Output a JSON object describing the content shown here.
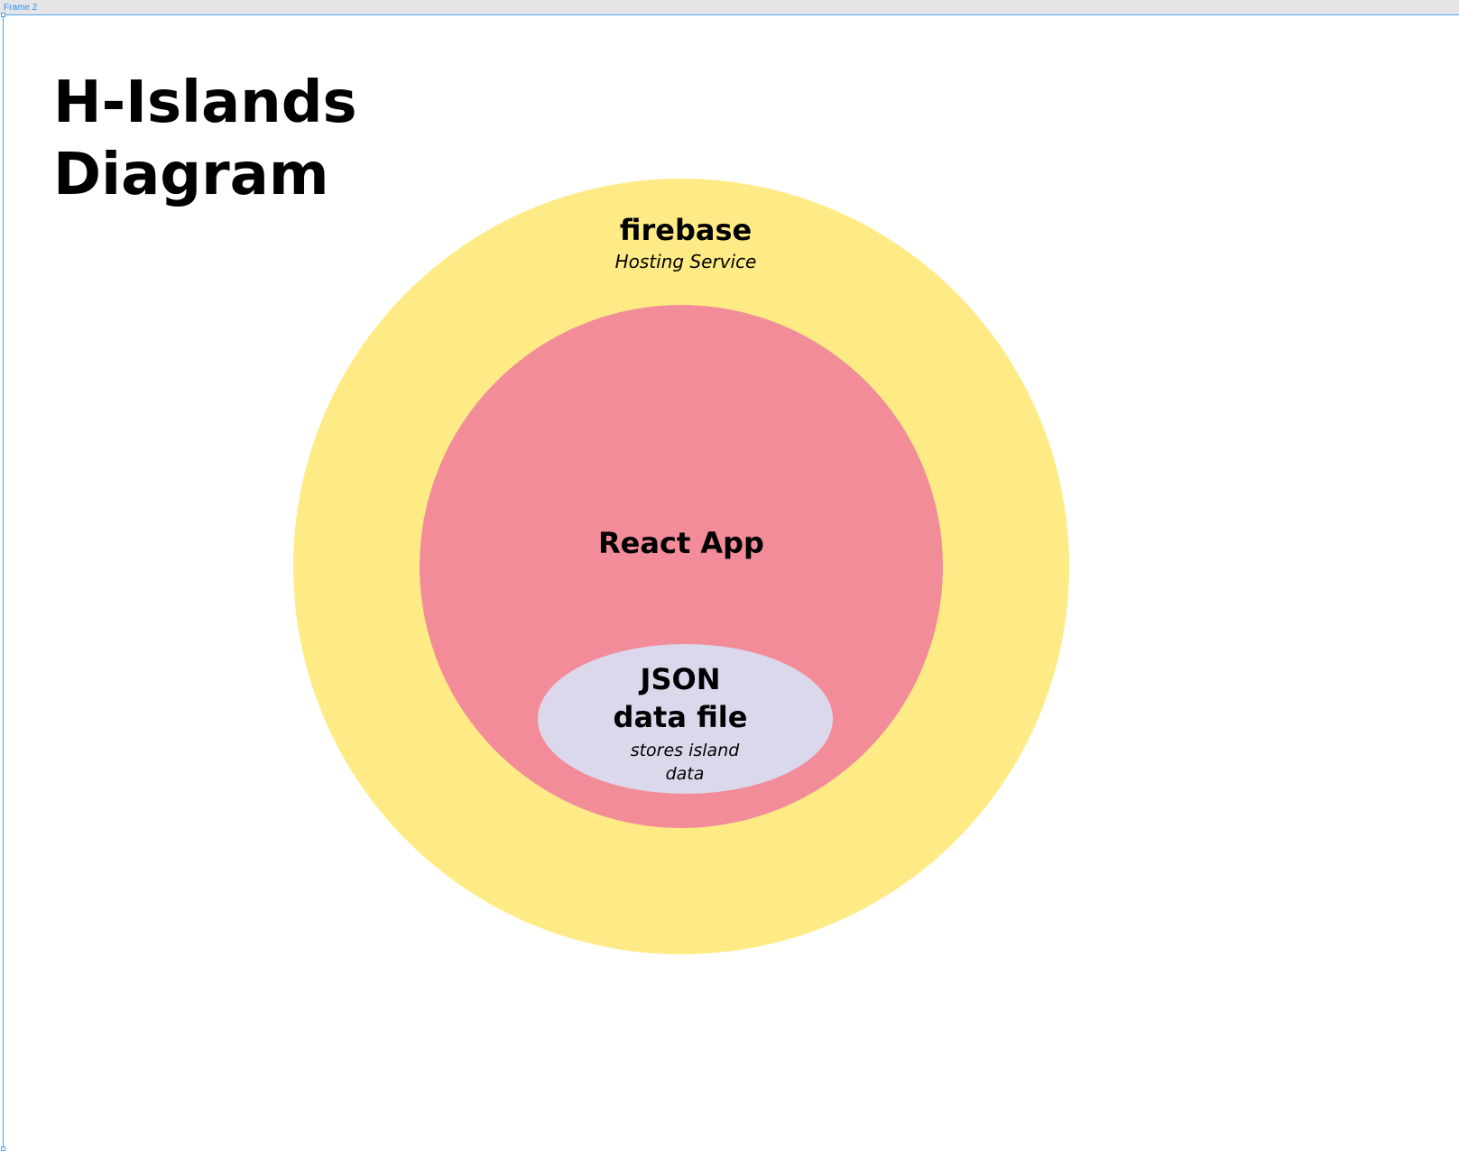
{
  "frame": {
    "label": "Frame 2",
    "accent_color": "#4aa3f5"
  },
  "title": {
    "line1": "H-Islands",
    "line2": "Diagram"
  },
  "layers": {
    "outer": {
      "name": "firebase",
      "subtitle": "Hosting Service",
      "color": "#ffeb85"
    },
    "middle": {
      "name": "React App",
      "color": "#f28c99"
    },
    "inner": {
      "name_line1": "JSON",
      "name_line2": "data file",
      "subtitle_line1": "stores island",
      "subtitle_line2": "data",
      "color": "#dcd8ec"
    }
  }
}
